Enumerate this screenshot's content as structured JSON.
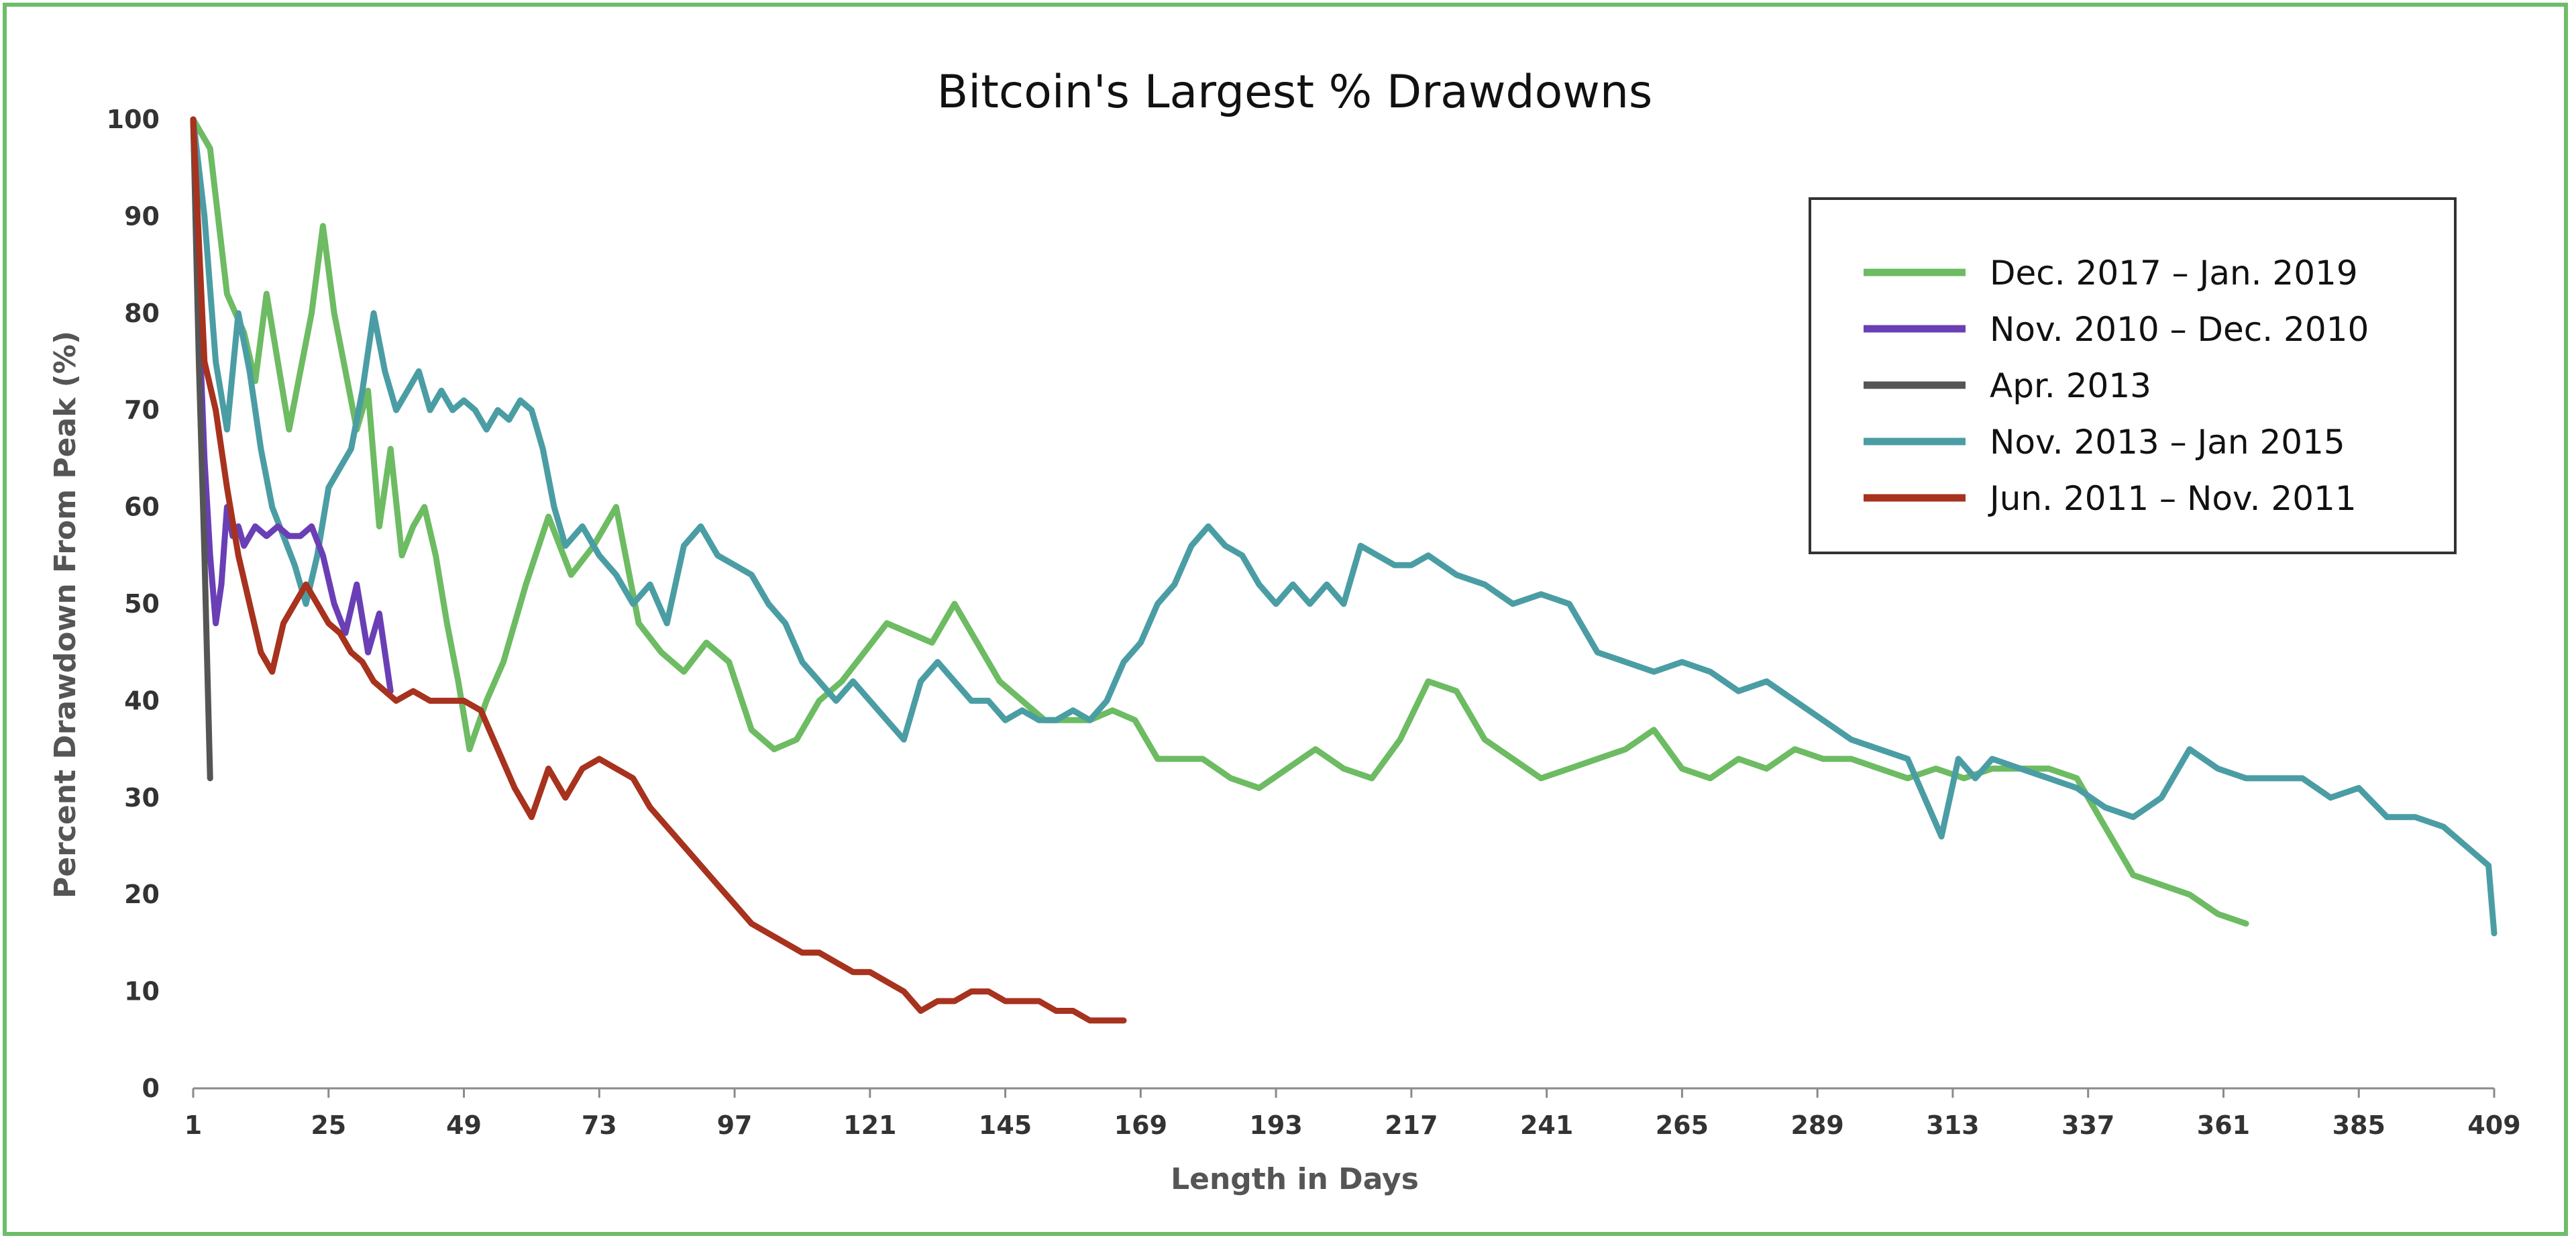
{
  "chart_data": {
    "type": "line",
    "title": "Bitcoin's Largest % Drawdowns",
    "xlabel": "Length in Days",
    "ylabel": "Percent Drawdown From Peak (%)",
    "xlim": [
      1,
      409
    ],
    "ylim": [
      0,
      100
    ],
    "xticks": [
      1,
      25,
      49,
      73,
      97,
      121,
      145,
      169,
      193,
      217,
      241,
      265,
      289,
      313,
      337,
      361,
      385,
      409
    ],
    "yticks": [
      0,
      10,
      20,
      30,
      40,
      50,
      60,
      70,
      80,
      90,
      100
    ],
    "grid": false,
    "legend": "top-right",
    "series": [
      {
        "name": "Dec. 2017 – Jan. 2019",
        "color": "#6dbb62",
        "x": [
          1,
          4,
          7,
          10,
          12,
          14,
          16,
          18,
          20,
          22,
          24,
          26,
          28,
          30,
          32,
          34,
          36,
          38,
          40,
          42,
          44,
          46,
          48,
          50,
          53,
          56,
          60,
          64,
          68,
          72,
          76,
          80,
          84,
          88,
          92,
          96,
          100,
          104,
          108,
          112,
          116,
          120,
          124,
          128,
          132,
          136,
          140,
          144,
          148,
          152,
          156,
          160,
          164,
          168,
          172,
          176,
          180,
          185,
          190,
          195,
          200,
          205,
          210,
          215,
          220,
          225,
          230,
          235,
          240,
          245,
          250,
          255,
          260,
          265,
          270,
          275,
          280,
          285,
          290,
          295,
          300,
          305,
          310,
          315,
          320,
          325,
          330,
          335,
          340,
          345,
          350,
          355,
          360,
          365
        ],
        "y": [
          100,
          97,
          82,
          78,
          73,
          82,
          75,
          68,
          74,
          80,
          89,
          80,
          74,
          68,
          72,
          58,
          66,
          55,
          58,
          60,
          55,
          48,
          42,
          35,
          40,
          44,
          52,
          59,
          53,
          56,
          60,
          48,
          45,
          43,
          46,
          44,
          37,
          35,
          36,
          40,
          42,
          45,
          48,
          47,
          46,
          50,
          46,
          42,
          40,
          38,
          38,
          38,
          39,
          38,
          34,
          34,
          34,
          32,
          31,
          33,
          35,
          33,
          32,
          36,
          42,
          41,
          36,
          34,
          32,
          33,
          34,
          35,
          37,
          33,
          32,
          34,
          33,
          35,
          34,
          34,
          33,
          32,
          33,
          32,
          33,
          33,
          33,
          32,
          27,
          22,
          21,
          20,
          18,
          17
        ]
      },
      {
        "name": "Nov. 2010 – Dec. 2010",
        "color": "#6a3fb5",
        "x": [
          1,
          2,
          3,
          4,
          5,
          6,
          7,
          8,
          9,
          10,
          12,
          14,
          16,
          18,
          20,
          22,
          24,
          26,
          28,
          30,
          32,
          34,
          36
        ],
        "y": [
          100,
          80,
          65,
          55,
          48,
          52,
          60,
          57,
          58,
          56,
          58,
          57,
          58,
          57,
          57,
          58,
          55,
          50,
          47,
          52,
          45,
          49,
          41
        ]
      },
      {
        "name": "Apr. 2013",
        "color": "#555555",
        "x": [
          1,
          2,
          3,
          4
        ],
        "y": [
          100,
          75,
          55,
          32
        ]
      },
      {
        "name": "Nov. 2013 – Jan 2015",
        "color": "#4b9da4",
        "x": [
          1,
          3,
          5,
          7,
          9,
          11,
          13,
          15,
          17,
          19,
          21,
          23,
          25,
          27,
          29,
          31,
          33,
          35,
          37,
          39,
          41,
          43,
          45,
          47,
          49,
          51,
          53,
          55,
          57,
          59,
          61,
          63,
          65,
          67,
          70,
          73,
          76,
          79,
          82,
          85,
          88,
          91,
          94,
          97,
          100,
          103,
          106,
          109,
          112,
          115,
          118,
          121,
          124,
          127,
          130,
          133,
          136,
          139,
          142,
          145,
          148,
          151,
          154,
          157,
          160,
          163,
          166,
          169,
          172,
          175,
          178,
          181,
          184,
          187,
          190,
          193,
          196,
          199,
          202,
          205,
          208,
          211,
          214,
          217,
          220,
          225,
          230,
          235,
          240,
          245,
          250,
          255,
          260,
          265,
          270,
          275,
          280,
          285,
          290,
          295,
          300,
          305,
          308,
          311,
          314,
          317,
          320,
          325,
          330,
          335,
          340,
          345,
          350,
          355,
          360,
          365,
          370,
          375,
          380,
          385,
          390,
          395,
          400,
          404,
          406,
          408
        ],
        "y": [
          100,
          90,
          75,
          68,
          80,
          74,
          66,
          60,
          57,
          54,
          50,
          55,
          62,
          64,
          66,
          72,
          80,
          74,
          70,
          72,
          74,
          70,
          72,
          70,
          71,
          70,
          68,
          70,
          69,
          71,
          70,
          66,
          60,
          56,
          58,
          55,
          53,
          50,
          52,
          48,
          56,
          58,
          55,
          54,
          53,
          50,
          48,
          44,
          42,
          40,
          42,
          40,
          38,
          36,
          42,
          44,
          42,
          40,
          40,
          38,
          39,
          38,
          38,
          39,
          38,
          40,
          44,
          46,
          50,
          52,
          56,
          58,
          56,
          55,
          52,
          50,
          52,
          50,
          52,
          50,
          56,
          55,
          54,
          54,
          55,
          53,
          52,
          50,
          51,
          50,
          45,
          44,
          43,
          44,
          43,
          41,
          42,
          40,
          38,
          36,
          35,
          34,
          30,
          26,
          34,
          32,
          34,
          33,
          32,
          31,
          29,
          28,
          30,
          35,
          33,
          32,
          32,
          32,
          30,
          31,
          28,
          28,
          27,
          25,
          24,
          23
        ],
        "end": [
          409,
          16
        ]
      },
      {
        "name": "Jun. 2011 – Nov. 2011",
        "color": "#a7321e",
        "x": [
          1,
          3,
          5,
          7,
          9,
          11,
          13,
          15,
          17,
          19,
          21,
          23,
          25,
          27,
          29,
          31,
          33,
          35,
          37,
          40,
          43,
          46,
          49,
          52,
          55,
          58,
          61,
          64,
          67,
          70,
          73,
          76,
          79,
          82,
          85,
          88,
          91,
          94,
          97,
          100,
          103,
          106,
          109,
          112,
          115,
          118,
          121,
          124,
          127,
          130,
          133,
          136,
          139,
          142,
          145,
          148,
          151,
          154,
          157,
          160,
          163,
          166
        ],
        "y": [
          100,
          75,
          70,
          62,
          55,
          50,
          45,
          43,
          48,
          50,
          52,
          50,
          48,
          47,
          45,
          44,
          42,
          41,
          40,
          41,
          40,
          40,
          40,
          39,
          35,
          31,
          28,
          33,
          30,
          33,
          34,
          33,
          32,
          29,
          27,
          25,
          23,
          21,
          19,
          17,
          16,
          15,
          14,
          14,
          13,
          12,
          12,
          11,
          10,
          8,
          9,
          9,
          10,
          10,
          9,
          9,
          9,
          8,
          8,
          7,
          7,
          7
        ]
      }
    ]
  }
}
